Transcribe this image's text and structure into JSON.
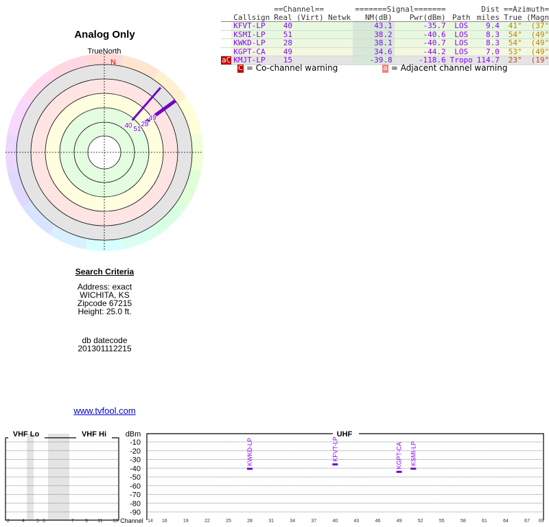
{
  "plot": {
    "title": "Analog Only",
    "north_label": "TrueNorth",
    "n_marker": "N"
  },
  "table": {
    "group_headers": {
      "channel": "==Channel==",
      "signal": "=======Signal=======",
      "dist": "Dist",
      "azimuth": "==Azimuth=="
    },
    "columns": [
      "Callsign",
      "Real",
      "(Virt)",
      "Netwk",
      "NM(dB)",
      "Pwr(dBm)",
      "Path",
      "miles",
      "True",
      "(Magn)"
    ],
    "rows": [
      {
        "warn": "",
        "callsign": "KFVT-LP",
        "real": "40",
        "virt": "",
        "netwk": "",
        "nm": "43.1",
        "pwr": "-35.7",
        "path": "LOS",
        "dist": "9.4",
        "true": "41°",
        "magn": "(37°)",
        "bg": "#e8f8e0",
        "az": "#c08000"
      },
      {
        "warn": "",
        "callsign": "KSMI-LP",
        "real": "51",
        "virt": "",
        "netwk": "",
        "nm": "38.2",
        "pwr": "-40.6",
        "path": "LOS",
        "dist": "8.3",
        "true": "54°",
        "magn": "(49°)",
        "bg": "#e8f8e0",
        "az": "#c08000"
      },
      {
        "warn": "",
        "callsign": "KWKD-LP",
        "real": "28",
        "virt": "",
        "netwk": "",
        "nm": "38.1",
        "pwr": "-40.7",
        "path": "LOS",
        "dist": "8.3",
        "true": "54°",
        "magn": "(49°)",
        "bg": "#eef8e0",
        "az": "#c08000"
      },
      {
        "warn": "",
        "callsign": "KGPT-CA",
        "real": "49",
        "virt": "",
        "netwk": "",
        "nm": "34.6",
        "pwr": "-44.2",
        "path": "LOS",
        "dist": "7.0",
        "true": "53°",
        "magn": "(49°)",
        "bg": "#f4f8e0",
        "az": "#c08000"
      },
      {
        "warn": "aC",
        "callsign": "KMJT-LP",
        "real": "15",
        "virt": "",
        "netwk": "",
        "nm": "-39.8",
        "pwr": "-118.6",
        "path": "Tropo",
        "dist": "114.7",
        "true": "23°",
        "magn": "(19°)",
        "bg": "#e4e4e4",
        "az": "#d04010"
      }
    ],
    "legend": {
      "co_icon": "C",
      "co": "= Co-channel warning",
      "adj_icon": "a",
      "adj": "= Adjacent channel warning"
    }
  },
  "criteria": {
    "heading": "Search Criteria",
    "address": "Address: exact",
    "city": "WICHITA, KS",
    "zip": "Zipcode 67215",
    "height": "Height: 25.0 ft.",
    "db_label": "db datecode",
    "db_value": "201301112215"
  },
  "link": "www.tvfool.com",
  "spectrum": {
    "vhf_lo": "VHF Lo",
    "vhf_hi": "VHF Hi",
    "uhf": "UHF",
    "dbm": "dBm",
    "channel": "Channel",
    "dbm_ticks": [
      "-10",
      "-20",
      "-30",
      "-40",
      "-50",
      "-60",
      "-70",
      "-80",
      "-90"
    ],
    "vhf_channels": [
      "2",
      "4",
      "5",
      "6",
      "7",
      "9",
      "11",
      "13"
    ],
    "uhf_channels": [
      "14",
      "16",
      "19",
      "22",
      "25",
      "28",
      "31",
      "34",
      "37",
      "40",
      "43",
      "46",
      "49",
      "52",
      "55",
      "58",
      "61",
      "64",
      "67",
      "69"
    ],
    "stations": [
      {
        "callsign": "KWKD-LP",
        "channel": 28,
        "pwr": -40.7
      },
      {
        "callsign": "KFVT-LP",
        "channel": 40,
        "pwr": -35.7
      },
      {
        "callsign": "KGPT-CA",
        "channel": 49,
        "pwr": -44.2
      },
      {
        "callsign": "KSMI-LP",
        "channel": 51,
        "pwr": -40.6
      }
    ]
  },
  "polar_stations": [
    {
      "label": "40",
      "azimuth": 41,
      "nm": 43.1
    },
    {
      "label": "51",
      "azimuth": 54,
      "nm": 38.2
    },
    {
      "label": "28",
      "azimuth": 54,
      "nm": 38.1
    },
    {
      "label": "49",
      "azimuth": 53,
      "nm": 34.6
    }
  ],
  "colors": {
    "station": "#7000c8",
    "warn_c": "#c00000",
    "warn_a": "#f08080"
  }
}
